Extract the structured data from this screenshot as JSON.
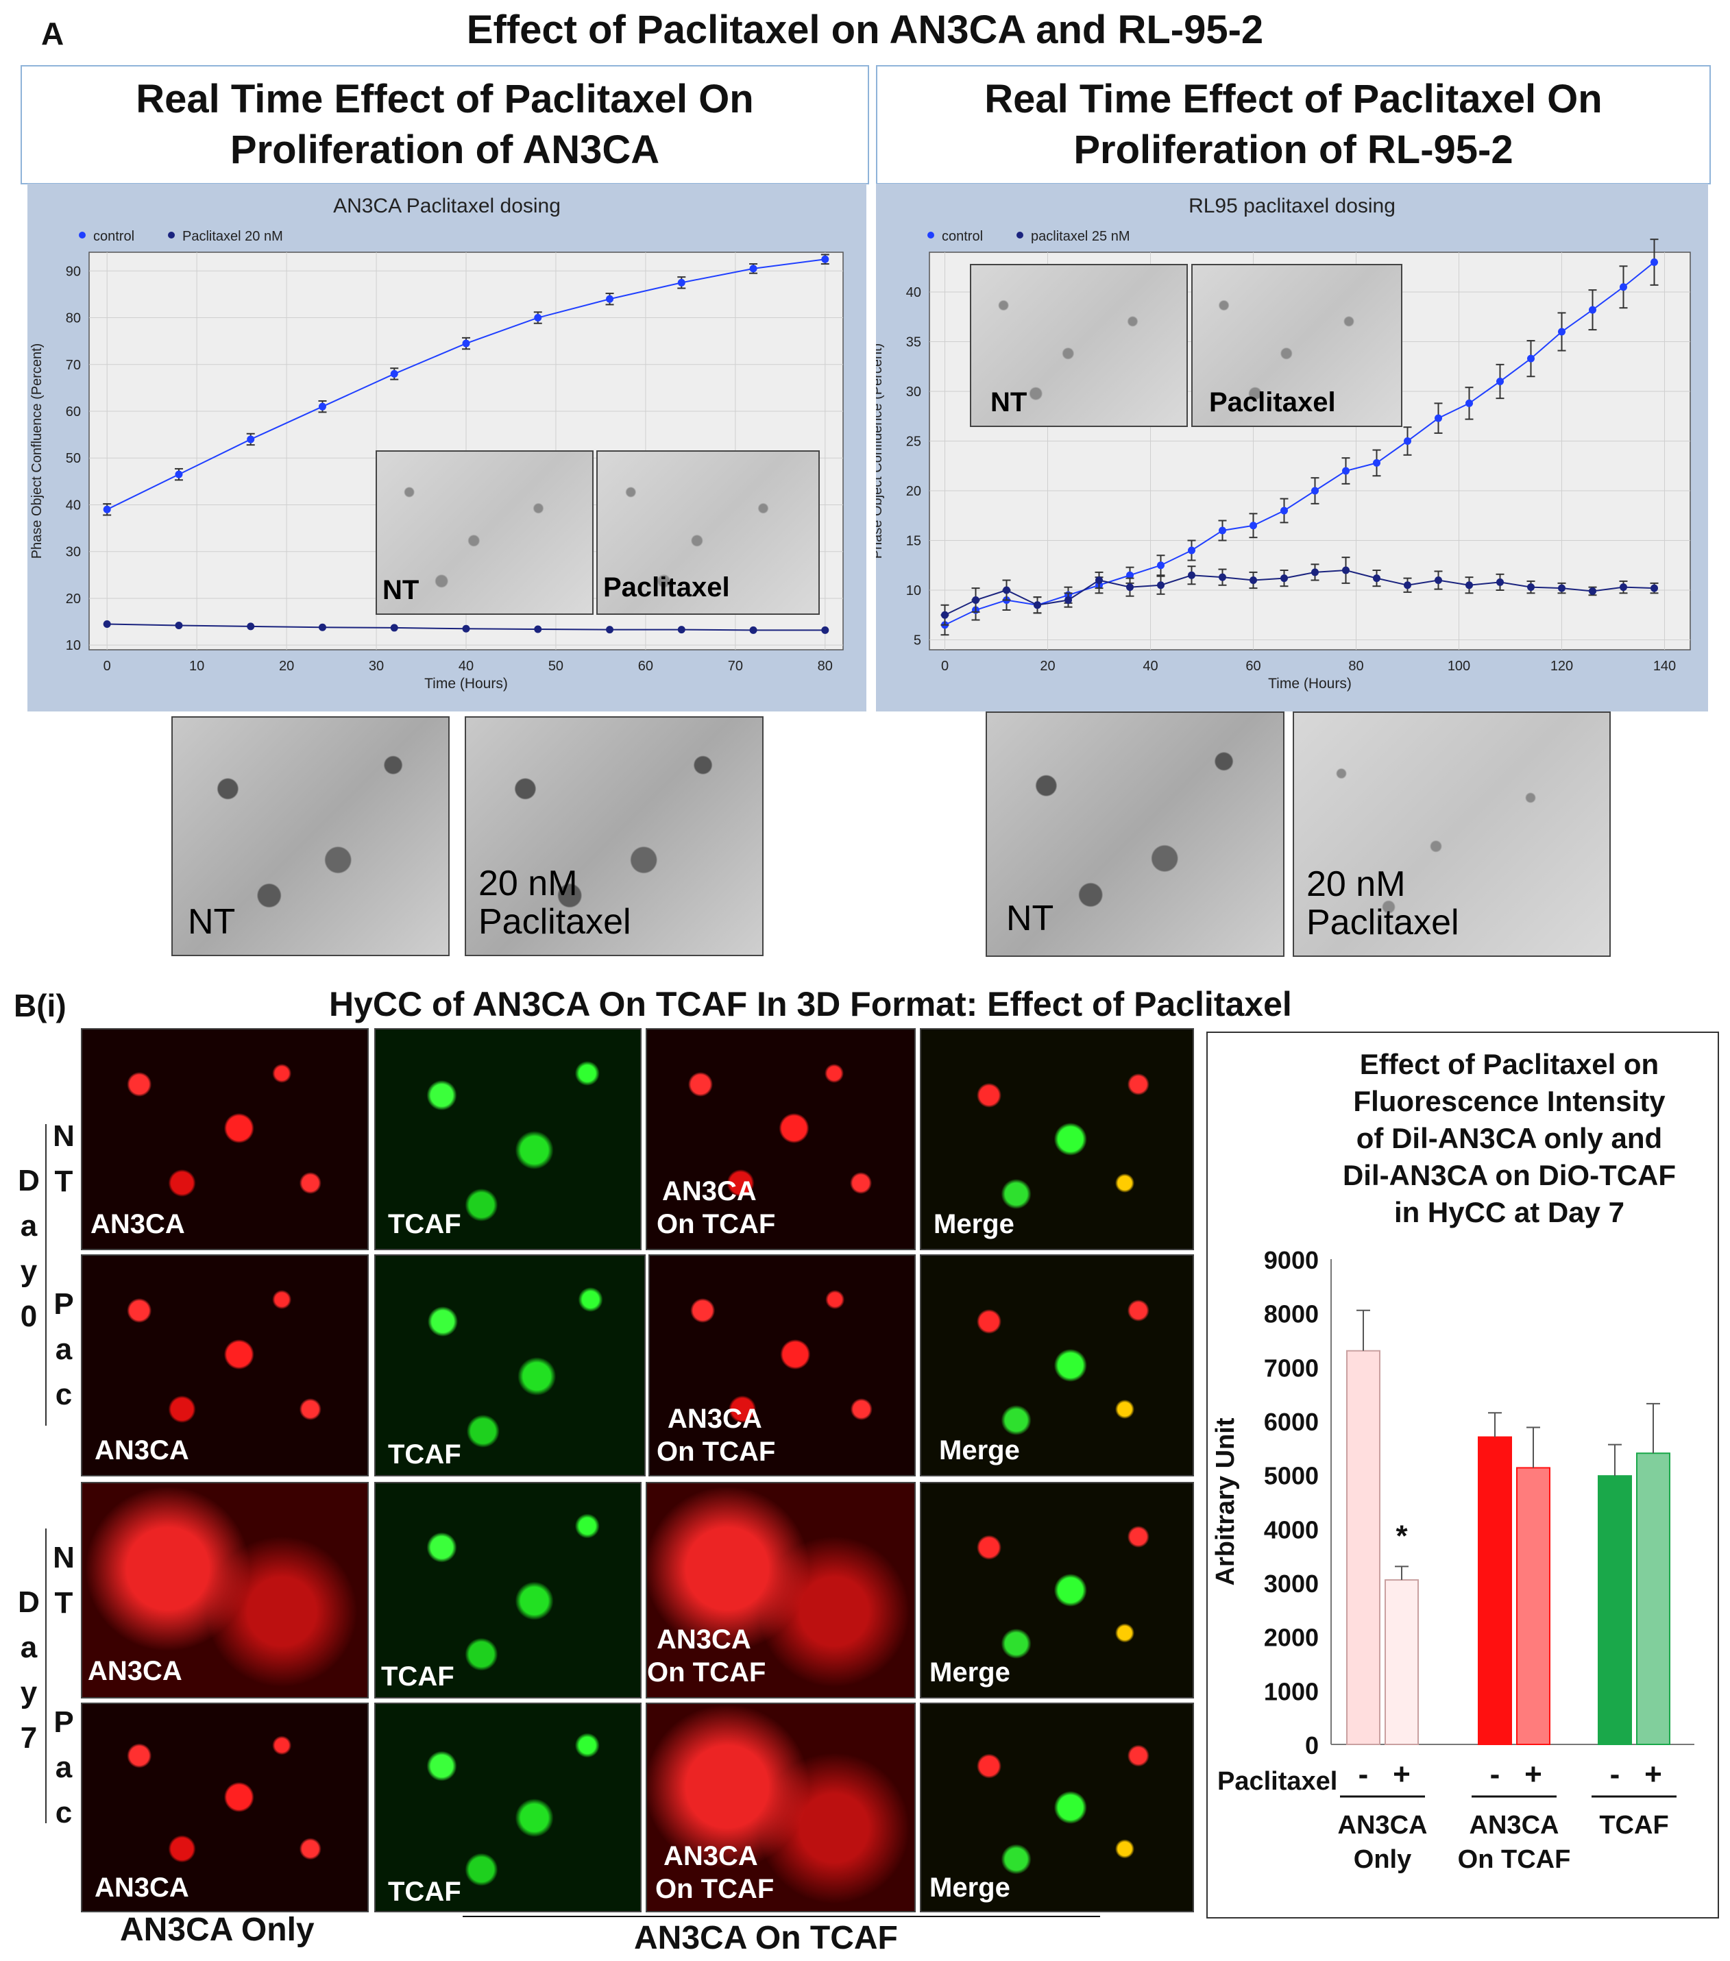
{
  "figure": {
    "panel_a_letter": "A",
    "panel_a_title": "Effect of Paclitaxel on AN3CA and RL-95-2",
    "panel_b_letter": "B(i)",
    "panel_b_title": "HyCC of AN3CA On TCAF In 3D Format: Effect of Paclitaxel"
  },
  "left_header": {
    "line1": "Real Time Effect of Paclitaxel On",
    "line2": "Proliferation of AN3CA"
  },
  "right_header": {
    "line1": "Real Time Effect of Paclitaxel On",
    "line2": "Proliferation of RL-95-2"
  },
  "inset_labels": {
    "nt": "NT",
    "paclitaxel": "Paclitaxel",
    "dose_line1": "20 nM",
    "dose_line2": "Paclitaxel"
  },
  "grid_labels": {
    "day0": [
      "D",
      "a",
      "y",
      "0"
    ],
    "day7": [
      "D",
      "a",
      "y",
      "7"
    ],
    "nt": [
      "N",
      "T"
    ],
    "pac": [
      "P",
      "a",
      "c"
    ],
    "an3ca": "AN3CA",
    "tcaf": "TCAF",
    "on_an3ca": "AN3CA",
    "on_tcaf": "On TCAF",
    "merge": "Merge",
    "footer_left": "AN3CA Only",
    "footer_right": "AN3CA On TCAF"
  },
  "colors": {
    "line_series": "#1f3fff",
    "line_series_dark": "#1a237e",
    "an3ca_only": "#ffdede",
    "an3ca_on_tcaf": "#ff1010",
    "tcaf": "#1aa84a",
    "panel_bg": "#bccbe0"
  },
  "chart_data": [
    {
      "type": "line",
      "title": "AN3CA Paclitaxel dosing",
      "xlabel": "Time (Hours)",
      "ylabel": "Phase Object Confluence (Percent)",
      "xlim": [
        -2,
        82
      ],
      "ylim": [
        9,
        94
      ],
      "xticks": [
        0,
        10,
        20,
        30,
        40,
        50,
        60,
        70,
        80
      ],
      "yticks": [
        10,
        20,
        30,
        40,
        50,
        60,
        70,
        80,
        90
      ],
      "legend_position": "top-left",
      "grid": true,
      "series": [
        {
          "name": "control",
          "x": [
            0,
            8,
            16,
            24,
            32,
            40,
            48,
            56,
            64,
            72,
            80
          ],
          "y": [
            39,
            46.5,
            54,
            61,
            68,
            74.5,
            80,
            84,
            87.5,
            90.5,
            92.5
          ],
          "err": [
            1.2,
            1.2,
            1.2,
            1.2,
            1.2,
            1.2,
            1.2,
            1.2,
            1.2,
            1,
            1
          ]
        },
        {
          "name": "Paclitaxel 20 nM",
          "x": [
            0,
            8,
            16,
            24,
            32,
            40,
            48,
            56,
            64,
            72,
            80
          ],
          "y": [
            14.5,
            14.2,
            14,
            13.8,
            13.7,
            13.5,
            13.4,
            13.3,
            13.3,
            13.2,
            13.2
          ],
          "err": [
            0,
            0,
            0,
            0,
            0,
            0,
            0,
            0,
            0,
            0,
            0
          ]
        }
      ]
    },
    {
      "type": "line",
      "title": "RL95 paclitaxel dosing",
      "xlabel": "Time (Hours)",
      "ylabel": "Phase Object Confluence (Percent)",
      "xlim": [
        -3,
        145
      ],
      "ylim": [
        4,
        44
      ],
      "xticks": [
        0,
        20,
        40,
        60,
        80,
        100,
        120,
        140
      ],
      "yticks": [
        5,
        10,
        15,
        20,
        25,
        30,
        35,
        40
      ],
      "legend_position": "top-left",
      "grid": true,
      "series": [
        {
          "name": "control",
          "x": [
            0,
            6,
            12,
            18,
            24,
            30,
            36,
            42,
            48,
            54,
            60,
            66,
            72,
            78,
            84,
            90,
            96,
            102,
            108,
            114,
            120,
            126,
            132,
            138
          ],
          "y": [
            6.5,
            8,
            9,
            8.5,
            9.5,
            10.5,
            11.5,
            12.5,
            14,
            16,
            16.5,
            18,
            20,
            22,
            22.8,
            25,
            27.3,
            28.8,
            31,
            33.3,
            36,
            38.2,
            40.5,
            43
          ],
          "err": [
            1,
            1,
            1,
            0.8,
            0.8,
            0.8,
            0.8,
            1,
            1,
            1,
            1.2,
            1.2,
            1.3,
            1.3,
            1.3,
            1.4,
            1.5,
            1.6,
            1.7,
            1.8,
            1.9,
            2,
            2.1,
            2.3
          ]
        },
        {
          "name": "paclitaxel  25 nM",
          "x": [
            0,
            6,
            12,
            18,
            24,
            30,
            36,
            42,
            48,
            54,
            60,
            66,
            72,
            78,
            84,
            90,
            96,
            102,
            108,
            114,
            120,
            126,
            132,
            138
          ],
          "y": [
            7.5,
            9,
            10,
            8.5,
            9,
            11,
            10.3,
            10.5,
            11.5,
            11.3,
            11,
            11.2,
            11.8,
            12,
            11.2,
            10.5,
            11,
            10.5,
            10.8,
            10.3,
            10.2,
            9.9,
            10.3,
            10.2
          ],
          "err": [
            1,
            1.2,
            1,
            0.8,
            0.7,
            0.8,
            0.9,
            0.9,
            0.9,
            0.8,
            0.8,
            0.8,
            0.8,
            1.3,
            0.8,
            0.7,
            0.9,
            0.8,
            0.8,
            0.6,
            0.5,
            0.4,
            0.6,
            0.5
          ]
        }
      ]
    },
    {
      "type": "bar",
      "title_lines": [
        "Effect of Paclitaxel on",
        "Fluorescence Intensity",
        "of Dil-AN3CA only and",
        "Dil-AN3CA on DiO-TCAF",
        "in HyCC at Day 7"
      ],
      "ylabel": "Arbitrary Unit",
      "xlabel": "Paclitaxel",
      "ylim": [
        0,
        9000
      ],
      "yticks": [
        0,
        1000,
        2000,
        3000,
        4000,
        5000,
        6000,
        7000,
        8000,
        9000
      ],
      "groups": [
        {
          "label_lines": [
            "AN3CA",
            "Only"
          ],
          "values": [
            7300,
            3050
          ],
          "errors": [
            750,
            250
          ],
          "signs": [
            "-",
            "+"
          ],
          "annotation": "*"
        },
        {
          "label_lines": [
            "AN3CA",
            "On TCAF"
          ],
          "values": [
            5700,
            5130
          ],
          "errors": [
            450,
            750
          ],
          "signs": [
            "-",
            "+"
          ]
        },
        {
          "label_lines": [
            "TCAF"
          ],
          "values": [
            4980,
            5400
          ],
          "errors": [
            580,
            920
          ],
          "signs": [
            "-",
            "+"
          ]
        }
      ]
    }
  ]
}
